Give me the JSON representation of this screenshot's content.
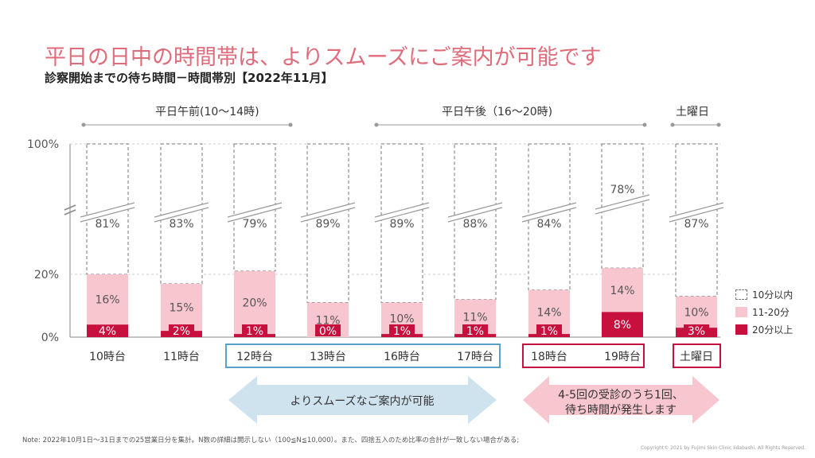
{
  "title": "平日の日中の時間帯は、よりスムーズにご案内が可能です",
  "subtitle": "診察開始までの待ち時間－時間帯別【2022年11月】",
  "groups": [
    {
      "label": "平日午前(10～14時)"
    },
    {
      "label": "平日午後（16～20時)"
    },
    {
      "label": "土曜日"
    }
  ],
  "arrows": {
    "left": "よりスムーズなご案内が可能",
    "right_line1": "4-5回の受診のうち1回、",
    "right_line2": "待ち時間が発生します"
  },
  "legend": [
    {
      "label": "10分以内",
      "color": "#ffffff"
    },
    {
      "label": "11-20分",
      "color": "#f8c6cf"
    },
    {
      "label": "20分以上",
      "color": "#c8103e"
    }
  ],
  "note": "Note: 2022年10月1日～31日までの25営業日分を集計。N数の詳細は開示しない（100≦N≦10,000）。また、四捨五入のため比率の合計が一致しない場合がある;",
  "copyright": "Copyright© 2021 by Fujimi Skin Clinic Iidabashi. All Rights Reserved.",
  "colors": {
    "accent": "#e06b7a",
    "dark_red": "#c8103e",
    "pink": "#f8c6cf",
    "blue_frame": "#5aa0c8",
    "red_frame": "#c8103e"
  },
  "chart_data": {
    "type": "bar",
    "stacked": true,
    "axis_break": true,
    "categories": [
      "10時台",
      "11時台",
      "12時台",
      "13時台",
      "16時台",
      "17時台",
      "18時台",
      "19時台",
      "土曜日"
    ],
    "y_tick_labels": [
      "0%",
      "20%",
      "100%"
    ],
    "series": [
      {
        "name": "20分以上",
        "values": [
          4,
          2,
          1,
          0,
          1,
          1,
          1,
          8,
          3
        ],
        "labels": [
          "4%",
          "2%",
          "1%",
          "0%",
          "1%",
          "1%",
          "1%",
          "8%",
          "3%"
        ]
      },
      {
        "name": "11-20分",
        "values": [
          16,
          15,
          20,
          11,
          10,
          11,
          14,
          14,
          10
        ],
        "labels": [
          "16%",
          "15%",
          "20%",
          "11%",
          "10%",
          "11%",
          "14%",
          "14%",
          "10%"
        ]
      },
      {
        "name": "10分以内",
        "values": [
          81,
          83,
          79,
          89,
          89,
          88,
          84,
          78,
          87
        ],
        "labels": [
          "81%",
          "83%",
          "79%",
          "89%",
          "89%",
          "88%",
          "84%",
          "78%",
          "87%"
        ]
      }
    ],
    "ylim": [
      0,
      100
    ],
    "legend_position": "right",
    "highlight_blue": [
      "12時台",
      "13時台",
      "16時台",
      "17時台"
    ],
    "highlight_red": [
      "18時台",
      "19時台",
      "土曜日"
    ]
  }
}
